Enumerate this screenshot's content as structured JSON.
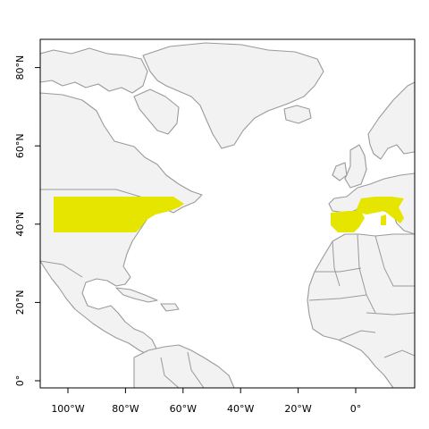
{
  "map": {
    "land_color": "#f2f2f2",
    "coastline_color": "#9a9a9a",
    "highlight_color": "#e5e500",
    "frame_color": "#000000",
    "highlighted_regions": [
      "north-america-band",
      "iberia-france-italy"
    ],
    "x_axis": {
      "ticks": [
        {
          "value": -100,
          "label": "100°W"
        },
        {
          "value": -80,
          "label": "80°W"
        },
        {
          "value": -60,
          "label": "60°W"
        },
        {
          "value": -40,
          "label": "40°W"
        },
        {
          "value": -20,
          "label": "20°W"
        },
        {
          "value": 0,
          "label": "0°"
        }
      ]
    },
    "y_axis": {
      "ticks": [
        {
          "value": 0,
          "label": "0°"
        },
        {
          "value": 20,
          "label": "20°N"
        },
        {
          "value": 40,
          "label": "40°N"
        },
        {
          "value": 60,
          "label": "60°N"
        },
        {
          "value": 80,
          "label": "80°N"
        }
      ]
    }
  }
}
